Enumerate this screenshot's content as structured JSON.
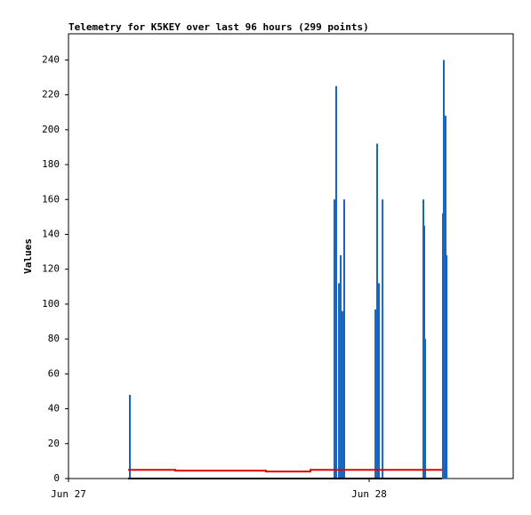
{
  "chart_data": {
    "type": "bar",
    "title": "Telemetry for K5KEY over last 96 hours (299 points)",
    "y_label": "Values",
    "xlim": [
      0,
      35.5
    ],
    "xticks": [
      {
        "value": 0,
        "label": "Jun 27"
      },
      {
        "value": 24,
        "label": "Jun 28"
      }
    ],
    "ylim": [
      0,
      255
    ],
    "yticks": [
      0,
      20,
      40,
      60,
      80,
      100,
      120,
      140,
      160,
      180,
      200,
      220,
      240
    ],
    "series": [
      {
        "type": "bar",
        "color": "#1565c0",
        "x": [
          4.9,
          21.23,
          21.37,
          21.59,
          21.73,
          21.87,
          22.01,
          24.5,
          24.64,
          24.78,
          25.07,
          28.33,
          28.4,
          28.47,
          29.89,
          29.96,
          30.1,
          30.18
        ],
        "values": [
          48,
          160,
          225,
          112,
          128,
          96,
          160,
          97,
          192,
          112,
          160,
          160,
          145,
          80,
          152,
          240,
          208,
          128
        ]
      },
      {
        "type": "line",
        "color": "#e00000",
        "x": [
          4.76,
          8.52,
          8.52,
          15.76,
          15.76,
          19.31,
          19.31,
          29.82
        ],
        "values": [
          5,
          5,
          4.5,
          4.5,
          4,
          4,
          5,
          5
        ]
      },
      {
        "type": "line",
        "color": "#000000",
        "x": [
          4.76,
          29.82
        ],
        "values": [
          0,
          0
        ]
      }
    ]
  }
}
